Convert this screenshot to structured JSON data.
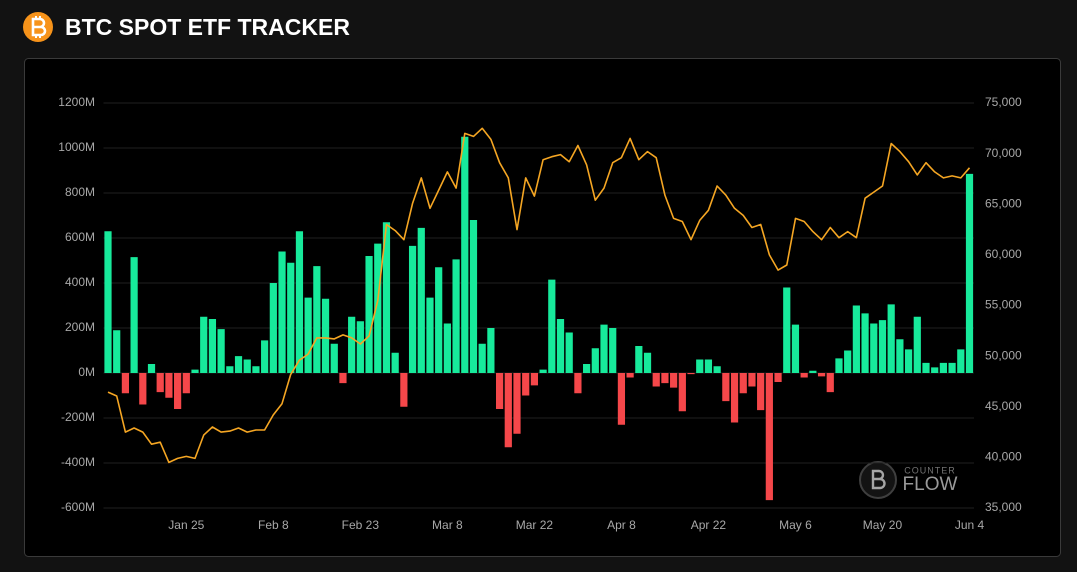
{
  "chart_data": {
    "type": "bar",
    "title": "BTC SPOT ETF TRACKER",
    "watermark": {
      "top": "COUNTER",
      "bottom": "FLOW"
    },
    "categories": [
      null,
      null,
      null,
      null,
      null,
      null,
      null,
      null,
      null,
      "Jan 25",
      null,
      null,
      null,
      null,
      null,
      null,
      null,
      null,
      null,
      "Feb 8",
      null,
      null,
      null,
      null,
      null,
      null,
      null,
      null,
      null,
      "Feb 23",
      null,
      null,
      null,
      null,
      null,
      null,
      null,
      null,
      null,
      "Mar 8",
      null,
      null,
      null,
      null,
      null,
      null,
      null,
      null,
      null,
      "Mar 22",
      null,
      null,
      null,
      null,
      null,
      null,
      null,
      null,
      null,
      "Apr 8",
      null,
      null,
      null,
      null,
      null,
      null,
      null,
      null,
      null,
      "Apr 22",
      null,
      null,
      null,
      null,
      null,
      null,
      null,
      null,
      null,
      "May 6",
      null,
      null,
      null,
      null,
      null,
      null,
      null,
      null,
      null,
      "May 20",
      null,
      null,
      null,
      null,
      null,
      null,
      null,
      null,
      null,
      "Jun 4"
    ],
    "series": [
      {
        "color": "#17ea9b",
        "negative_color": "#f5474a",
        "values": [
          630,
          190,
          -90,
          515,
          -140,
          40,
          -85,
          -110,
          -160,
          -90,
          15,
          250,
          240,
          195,
          30,
          75,
          60,
          30,
          145,
          400,
          540,
          490,
          630,
          335,
          475,
          330,
          130,
          -45,
          250,
          230,
          520,
          575,
          670,
          90,
          -150,
          565,
          645,
          335,
          470,
          220,
          505,
          1050,
          680,
          130,
          200,
          -160,
          -330,
          -270,
          -100,
          -55,
          15,
          415,
          240,
          180,
          -90,
          40,
          110,
          215,
          200,
          -230,
          -20,
          120,
          90,
          -60,
          -45,
          -65,
          -170,
          -5,
          60,
          60,
          30,
          -125,
          -220,
          -90,
          -60,
          -165,
          -565,
          -40,
          380,
          215,
          -20,
          10,
          -15,
          -85,
          65,
          100,
          300,
          265,
          220,
          235,
          305,
          150,
          105,
          250,
          45,
          25,
          45,
          45,
          105,
          885
        ]
      },
      {
        "type": "line",
        "axis": "y2",
        "color": "#f5a623",
        "values": [
          46450,
          46060,
          42500,
          42900,
          42500,
          41300,
          41500,
          39500,
          39900,
          40100,
          39900,
          42200,
          43000,
          42500,
          42600,
          42900,
          42500,
          42700,
          42700,
          44200,
          45300,
          48200,
          49600,
          50200,
          51800,
          51800,
          51700,
          52100,
          51800,
          51200,
          52000,
          55500,
          63000,
          62400,
          61500,
          65100,
          67600,
          64600,
          66400,
          68200,
          66600,
          72000,
          71700,
          72500,
          71400,
          69100,
          67600,
          62500,
          67600,
          65800,
          69400,
          69700,
          69900,
          69200,
          70800,
          68900,
          65400,
          66600,
          69100,
          69600,
          71500,
          69400,
          70200,
          69600,
          65900,
          63600,
          63300,
          61500,
          63400,
          64400,
          66800,
          65900,
          64600,
          63900,
          62700,
          63000,
          60000,
          58500,
          59000,
          63600,
          63300,
          62300,
          61500,
          62700,
          61700,
          62300,
          61700,
          65600,
          66200,
          66800,
          71000,
          70200,
          69200,
          67900,
          69100,
          68200,
          67600,
          67800,
          67600,
          68600
        ]
      }
    ],
    "ylim": [
      -600,
      1200
    ],
    "yticks": [
      {
        "value": -600,
        "label": "-600M"
      },
      {
        "value": -400,
        "label": "-400M"
      },
      {
        "value": -200,
        "label": "-200M"
      },
      {
        "value": 0,
        "label": "0M"
      },
      {
        "value": 200,
        "label": "200M"
      },
      {
        "value": 400,
        "label": "400M"
      },
      {
        "value": 600,
        "label": "600M"
      },
      {
        "value": 800,
        "label": "800M"
      },
      {
        "value": 1000,
        "label": "1000M"
      },
      {
        "value": 1200,
        "label": "1200M"
      }
    ],
    "y2lim": [
      35000,
      75000
    ],
    "y2ticks": [
      {
        "value": 35000,
        "label": "35,000"
      },
      {
        "value": 40000,
        "label": "40,000"
      },
      {
        "value": 45000,
        "label": "45,000"
      },
      {
        "value": 50000,
        "label": "50,000"
      },
      {
        "value": 55000,
        "label": "55,000"
      },
      {
        "value": 60000,
        "label": "60,000"
      },
      {
        "value": 65000,
        "label": "65,000"
      },
      {
        "value": 70000,
        "label": "70,000"
      },
      {
        "value": 75000,
        "label": "75,000"
      }
    ],
    "grid": true
  }
}
